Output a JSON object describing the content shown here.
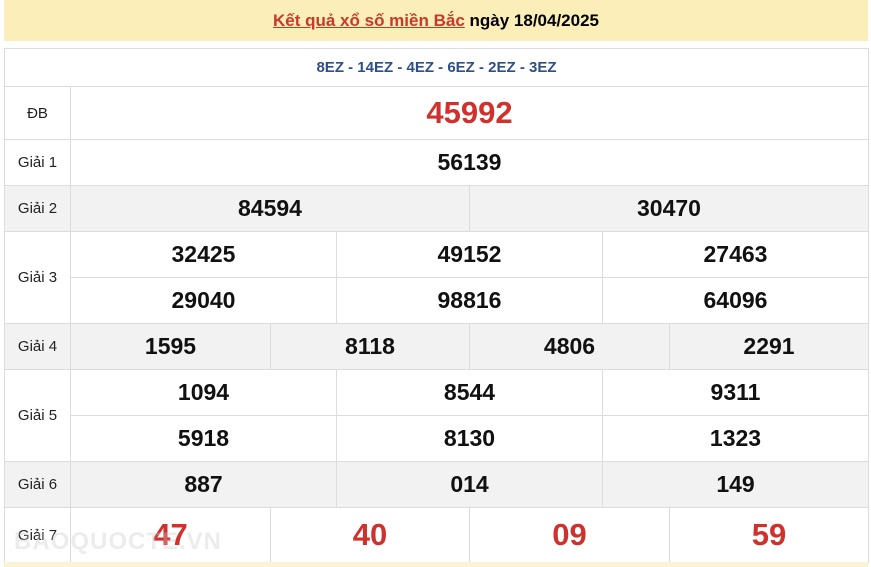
{
  "header": {
    "title_link": "Kết quả xổ số miền Bắc",
    "title_rest": " ngày 18/04/2025"
  },
  "codes": "8EZ - 14EZ - 4EZ - 6EZ - 2EZ - 3EZ",
  "labels": {
    "db": "ĐB",
    "g1": "Giải 1",
    "g2": "Giải 2",
    "g3": "Giải 3",
    "g4": "Giải 4",
    "g5": "Giải 5",
    "g6": "Giải 6",
    "g7": "Giải 7"
  },
  "prizes": {
    "db": [
      "45992"
    ],
    "g1": [
      "56139"
    ],
    "g2": [
      "84594",
      "30470"
    ],
    "g3": [
      "32425",
      "49152",
      "27463",
      "29040",
      "98816",
      "64096"
    ],
    "g4": [
      "1595",
      "8118",
      "4806",
      "2291"
    ],
    "g5": [
      "1094",
      "8544",
      "9311",
      "5918",
      "8130",
      "1323"
    ],
    "g6": [
      "887",
      "014",
      "149"
    ],
    "g7": [
      "47",
      "40",
      "09",
      "59"
    ]
  },
  "watermark": "BAOQUOCTE.VN",
  "colors": {
    "special": "#d0312d",
    "header_bg": "#fbeeb8",
    "codes": "#2e4f88"
  }
}
